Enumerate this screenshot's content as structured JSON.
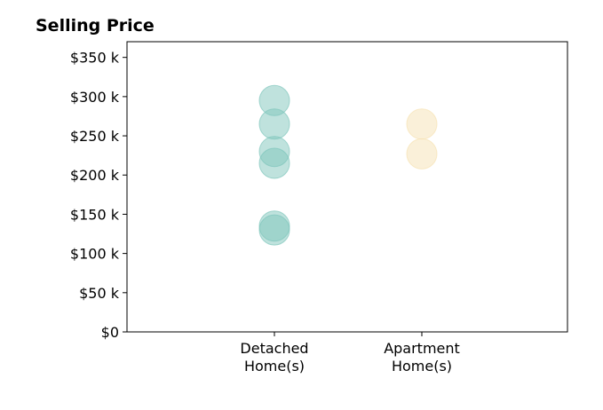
{
  "chart_data": {
    "type": "scatter",
    "title": "Selling Price",
    "xlabel": "",
    "ylabel": "",
    "categories": [
      [
        "Detached",
        "Home(s)"
      ],
      [
        "Apartment",
        "Home(s)"
      ]
    ],
    "y_ticks": [
      {
        "value": 0,
        "label": "$0"
      },
      {
        "value": 50000,
        "label": "$50 k"
      },
      {
        "value": 100000,
        "label": "$100 k"
      },
      {
        "value": 150000,
        "label": "$150 k"
      },
      {
        "value": 200000,
        "label": "$200 k"
      },
      {
        "value": 250000,
        "label": "$250 k"
      },
      {
        "value": 300000,
        "label": "$300 k"
      },
      {
        "value": 350000,
        "label": "$350 k"
      }
    ],
    "ylim": [
      0,
      370000
    ],
    "grid": false,
    "legend": "none",
    "series": [
      {
        "category_index": 0,
        "color": "#7fc6bc",
        "values": [
          295000,
          265000,
          230000,
          215000,
          135000,
          130000
        ]
      },
      {
        "category_index": 1,
        "color": "#f6e2b3",
        "values": [
          265000,
          227000
        ]
      }
    ]
  }
}
